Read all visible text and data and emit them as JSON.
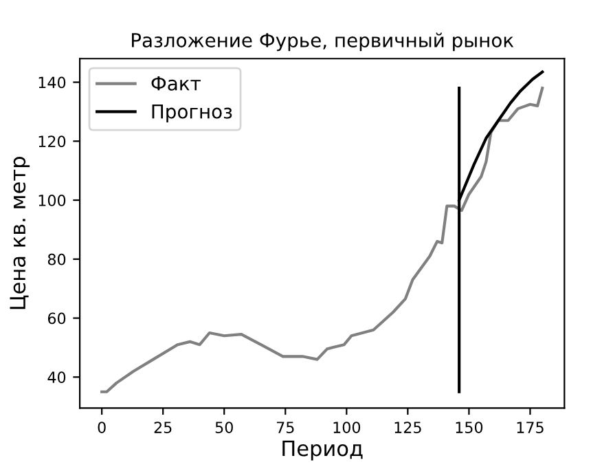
{
  "chart_data": {
    "type": "line",
    "title": "Разложение Фурье, первичный рынок",
    "xlabel": "Период",
    "ylabel": "Цена кв. метр",
    "xlim": [
      -9,
      189
    ],
    "xticks": [
      0,
      25,
      50,
      75,
      100,
      125,
      150,
      175
    ],
    "ylim": [
      29.5,
      148
    ],
    "yticks": [
      40,
      60,
      80,
      100,
      120,
      140
    ],
    "grid": false,
    "legend": "top left",
    "series": [
      {
        "name": "Факт",
        "color": "#808080",
        "x": [
          0,
          2,
          6,
          13,
          21,
          31,
          36,
          40,
          44,
          50,
          57,
          65,
          74,
          82,
          88,
          92,
          94,
          99,
          102,
          111,
          119,
          124,
          127,
          134,
          137,
          139,
          141,
          144,
          147,
          150,
          155,
          157,
          159,
          162,
          166,
          170,
          175,
          178,
          180
        ],
        "values": [
          35,
          35,
          38,
          42,
          46,
          51,
          52,
          51,
          55,
          54,
          54.5,
          51,
          47,
          47,
          46,
          49.5,
          50,
          51,
          54,
          56,
          62,
          66.5,
          73,
          81,
          86,
          85.5,
          98,
          98,
          96.5,
          102,
          108,
          113,
          123,
          127,
          127,
          131,
          132.5,
          132,
          138
        ]
      },
      {
        "name": "Прогноз",
        "color": "#000000",
        "x": [
          146,
          152,
          157,
          162,
          167,
          171,
          176,
          180
        ],
        "values": [
          100,
          112,
          121,
          127,
          133,
          137,
          141,
          143.5
        ]
      },
      {
        "color": "#000000",
        "x": [
          146,
          146
        ],
        "values": [
          35,
          138
        ]
      }
    ]
  }
}
